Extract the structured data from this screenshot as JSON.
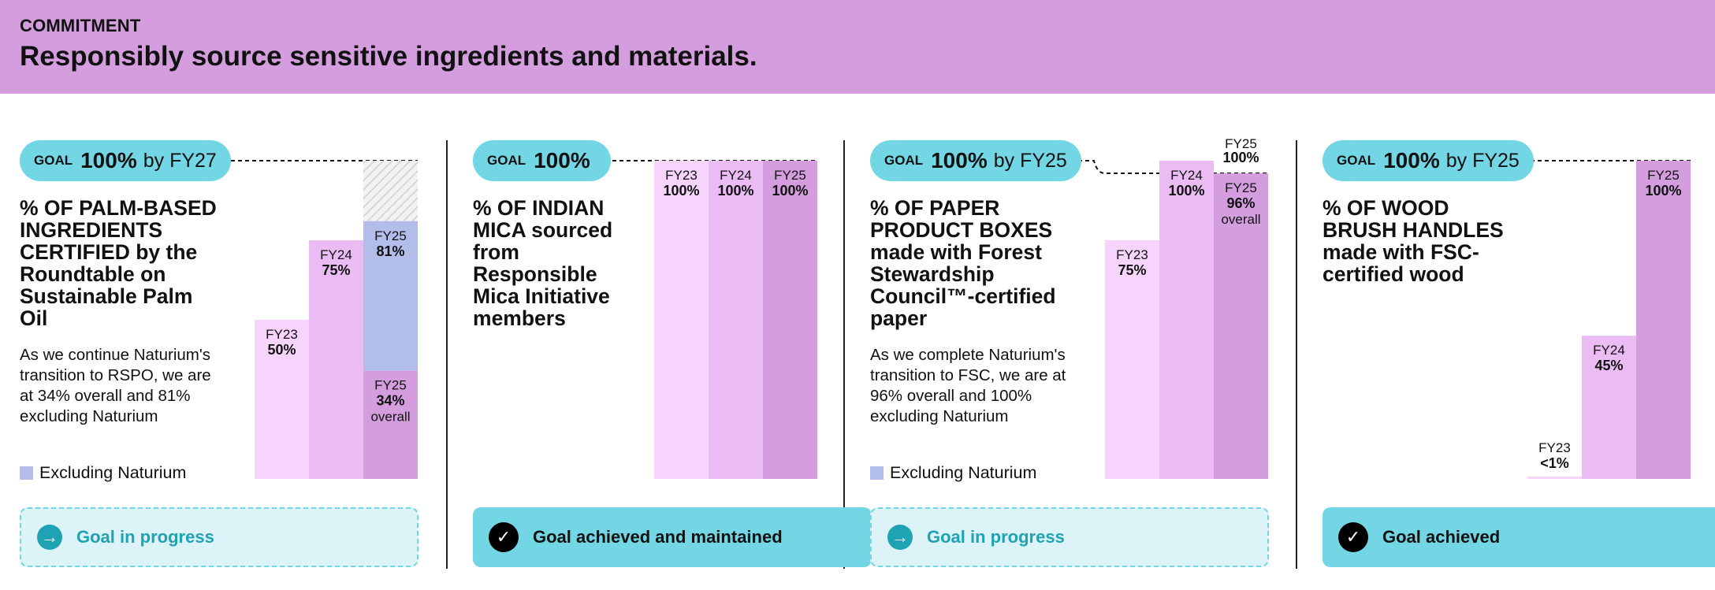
{
  "header": {
    "eyebrow": "COMMITMENT",
    "title": "Responsibly source sensitive ingredients and materials."
  },
  "colors": {
    "header": "#d49ede",
    "fy23": "#f7d4fb",
    "fy24": "#ebbcf4",
    "fy25": "#d49ede",
    "excluding": "#b3bdea",
    "goal_pill": "#72d6e4",
    "progress_text": "#1fa2b4"
  },
  "panels": [
    {
      "goal_word": "GOAL",
      "goal_pct": "100%",
      "goal_by": "by FY27",
      "heading_lines": [
        "% OF PALM-BASED",
        "INGREDIENTS",
        "CERTIFIED by the",
        "Roundtable on",
        "Sustainable Palm",
        "Oil"
      ],
      "desc_lines": [
        "As we continue Naturium's",
        "transition to RSPO, we are",
        "at 34% overall and 81%",
        "excluding Naturium"
      ],
      "legend": "Excluding Naturium",
      "status": "Goal in progress",
      "status_type": "progress"
    },
    {
      "goal_word": "GOAL",
      "goal_pct": "100%",
      "goal_by": "",
      "heading_lines": [
        "% OF INDIAN",
        "MICA sourced",
        "from",
        "Responsible",
        "Mica Initiative",
        "members"
      ],
      "desc_lines": [],
      "legend": "",
      "status": "Goal achieved and maintained",
      "status_type": "done"
    },
    {
      "goal_word": "GOAL",
      "goal_pct": "100%",
      "goal_by": "by FY25",
      "heading_lines": [
        "% OF PAPER",
        "PRODUCT BOXES",
        "made with Forest",
        "Stewardship",
        "Council™-certified",
        "paper"
      ],
      "desc_lines": [
        "As we complete Naturium's",
        "transition to FSC, we are at",
        "96% overall and 100%",
        "excluding Naturium"
      ],
      "legend": "Excluding Naturium",
      "status": "Goal in progress",
      "status_type": "progress"
    },
    {
      "goal_word": "GOAL",
      "goal_pct": "100%",
      "goal_by": "by FY25",
      "heading_lines": [
        "% OF WOOD",
        "BRUSH HANDLES",
        "made with FSC-",
        "certified wood"
      ],
      "desc_lines": [],
      "legend": "",
      "status": "Goal achieved",
      "status_type": "done"
    }
  ],
  "chart_data": [
    {
      "type": "bar",
      "title": "% OF PALM-BASED INGREDIENTS CERTIFIED by the Roundtable on Sustainable Palm Oil",
      "categories": [
        "FY23",
        "FY24",
        "FY25"
      ],
      "series": [
        {
          "name": "overall",
          "values": [
            50,
            75,
            34
          ]
        },
        {
          "name": "Excluding Naturium",
          "values": [
            null,
            null,
            81
          ]
        }
      ],
      "value_labels": [
        "50%",
        "75%",
        "34%",
        "81%"
      ],
      "overall_word": "overall",
      "goal": 100,
      "ylim": [
        0,
        100
      ]
    },
    {
      "type": "bar",
      "title": "% OF INDIAN MICA sourced from Responsible Mica Initiative members",
      "categories": [
        "FY23",
        "FY24",
        "FY25"
      ],
      "series": [
        {
          "values": [
            100,
            100,
            100
          ]
        }
      ],
      "value_labels": [
        "100%",
        "100%",
        "100%"
      ],
      "goal": 100,
      "ylim": [
        0,
        100
      ]
    },
    {
      "type": "bar",
      "title": "% OF PAPER PRODUCT BOXES made with Forest Stewardship Council™-certified paper",
      "categories": [
        "FY23",
        "FY24",
        "FY25"
      ],
      "series": [
        {
          "name": "overall",
          "values": [
            75,
            100,
            96
          ]
        },
        {
          "name": "Excluding Naturium",
          "values": [
            null,
            null,
            100
          ]
        }
      ],
      "value_labels": [
        "75%",
        "100%",
        "96%",
        "100%"
      ],
      "overall_word": "overall",
      "goal": 100,
      "ylim": [
        0,
        100
      ]
    },
    {
      "type": "bar",
      "title": "% OF WOOD BRUSH HANDLES made with FSC-certified wood",
      "categories": [
        "FY23",
        "FY24",
        "FY25"
      ],
      "series": [
        {
          "values": [
            0.5,
            45,
            100
          ]
        }
      ],
      "value_labels": [
        "<1%",
        "45%",
        "100%"
      ],
      "goal": 100,
      "ylim": [
        0,
        100
      ]
    }
  ]
}
